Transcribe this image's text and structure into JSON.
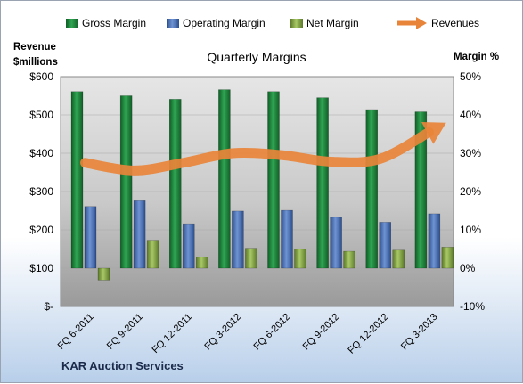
{
  "chart_data": {
    "type": "bar+line",
    "title": "Quarterly Margins",
    "left_axis_title": [
      "Revenue",
      "$millions"
    ],
    "right_axis_title": "Margin %",
    "footer": "KAR Auction Services",
    "categories": [
      "FQ 6-2011",
      "FQ 9-2011",
      "FQ 12-2011",
      "FQ 3-2012",
      "FQ 6-2012",
      "FQ 9-2012",
      "FQ 12-2012",
      "FQ 3-2013"
    ],
    "left_ticks": [
      "$-",
      "$100",
      "$200",
      "$300",
      "$400",
      "$500",
      "$600"
    ],
    "left_ylim": [
      0,
      600
    ],
    "right_ticks": [
      "-10%",
      "0%",
      "10%",
      "20%",
      "30%",
      "40%",
      "50%"
    ],
    "right_ylim": [
      -10,
      50
    ],
    "series": [
      {
        "name": "Gross Margin",
        "axis": "right",
        "color": "#1f8a3b",
        "values": [
          46.1,
          45.0,
          44.1,
          46.6,
          46.1,
          44.5,
          41.4,
          40.8
        ]
      },
      {
        "name": "Operating Margin",
        "axis": "right",
        "color": "#4a72b8",
        "values": [
          16.1,
          17.6,
          11.6,
          14.9,
          15.1,
          13.3,
          12.0,
          14.2
        ]
      },
      {
        "name": "Net Margin",
        "axis": "right",
        "color": "#8db04a",
        "values": [
          -3.1,
          7.3,
          2.9,
          5.2,
          5.0,
          4.4,
          4.7,
          5.5
        ]
      },
      {
        "name": "Revenues",
        "axis": "left",
        "color": "#e8843a",
        "values": [
          375,
          355,
          375,
          400,
          395,
          378,
          385,
          455
        ]
      }
    ]
  },
  "legend": [
    {
      "label": "Gross Margin",
      "color": "#1f8a3b",
      "kind": "bar"
    },
    {
      "label": "Operating Margin",
      "color": "#4a72b8",
      "kind": "bar"
    },
    {
      "label": "Net Margin",
      "color": "#8db04a",
      "kind": "bar"
    },
    {
      "label": "Revenues",
      "color": "#e8843a",
      "kind": "arrow"
    }
  ]
}
